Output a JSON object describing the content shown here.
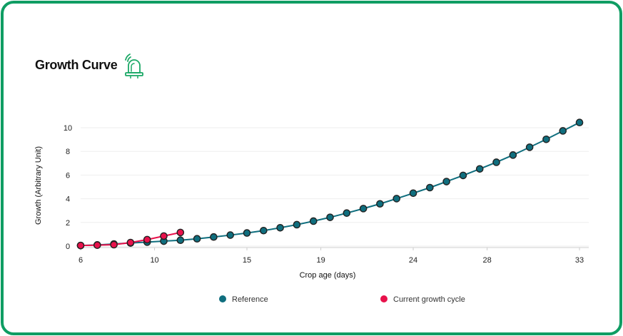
{
  "card": {
    "title": "Growth Curve",
    "icon": "alarm-light-icon",
    "accent_color": "#0f9d63"
  },
  "chart_data": {
    "type": "line",
    "xlabel": "Crop age (days)",
    "ylabel": "Growth (Arbitrary Unit)",
    "xlim": [
      6,
      33.5
    ],
    "ylim": [
      0,
      10
    ],
    "x_ticks": [
      6,
      10,
      15,
      19,
      24,
      28,
      33
    ],
    "y_ticks": [
      0,
      2,
      4,
      6,
      8,
      10
    ],
    "grid": true,
    "legend_position": "bottom",
    "series": [
      {
        "name": "Reference",
        "color": "#0f6e7e",
        "x": [
          6,
          6.9,
          7.8,
          8.7,
          9.6,
          10.5,
          11.4,
          12.3,
          13.2,
          14.1,
          15.0,
          15.9,
          16.8,
          17.7,
          18.6,
          19.5,
          20.4,
          21.3,
          22.2,
          23.1,
          24.0,
          24.9,
          25.8,
          26.7,
          27.6,
          28.5,
          29.4,
          30.3,
          31.2,
          32.1,
          33.0
        ],
        "values": [
          0.05,
          0.1,
          0.18,
          0.26,
          0.34,
          0.42,
          0.5,
          0.62,
          0.77,
          0.93,
          1.11,
          1.31,
          1.55,
          1.81,
          2.11,
          2.43,
          2.79,
          3.17,
          3.57,
          4.01,
          4.47,
          4.94,
          5.45,
          5.97,
          6.52,
          7.08,
          7.69,
          8.35,
          9.02,
          9.73,
          10.44
        ]
      },
      {
        "name": "Current growth cycle",
        "color": "#e8114b",
        "x": [
          6,
          6.9,
          7.8,
          8.7,
          9.6,
          10.5,
          11.4
        ],
        "values": [
          0.05,
          0.08,
          0.12,
          0.3,
          0.55,
          0.85,
          1.15
        ]
      }
    ]
  }
}
